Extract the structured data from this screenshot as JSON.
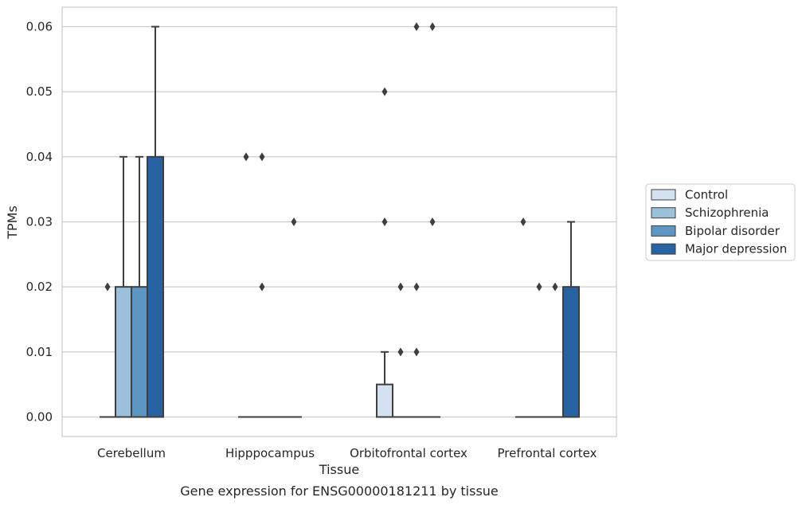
{
  "chart_data": {
    "type": "box",
    "title": "",
    "caption": "Gene expression for ENSG00000181211 by tissue",
    "xlabel": "Tissue",
    "ylabel": "TPMs",
    "ylim": [
      -0.003,
      0.063
    ],
    "yticks": [
      0.0,
      0.01,
      0.02,
      0.03,
      0.04,
      0.05,
      0.06
    ],
    "ytick_labels": [
      "0.00",
      "0.01",
      "0.02",
      "0.03",
      "0.04",
      "0.05",
      "0.06"
    ],
    "grid": "horizontal",
    "legend_position": "right",
    "categories": [
      "Cerebellum",
      "Hipppocampus",
      "Orbitofrontal cortex",
      "Prefrontal cortex"
    ],
    "series": [
      {
        "name": "Control",
        "color": "#d3e1f0",
        "boxes": [
          {
            "q1": 0,
            "median": 0,
            "q3": 0,
            "whisker_low": 0,
            "whisker_high": 0,
            "outliers": [
              0.02
            ]
          },
          {
            "q1": 0,
            "median": 0,
            "q3": 0,
            "whisker_low": 0,
            "whisker_high": 0,
            "outliers": [
              0.04
            ]
          },
          {
            "q1": 0,
            "median": 0,
            "q3": 0.005,
            "whisker_low": 0,
            "whisker_high": 0.01,
            "outliers": [
              0.03,
              0.05
            ]
          },
          {
            "q1": 0,
            "median": 0,
            "q3": 0,
            "whisker_low": 0,
            "whisker_high": 0,
            "outliers": [
              0.03
            ]
          }
        ]
      },
      {
        "name": "Schizophrenia",
        "color": "#9bc0da",
        "boxes": [
          {
            "q1": 0,
            "median": 0,
            "q3": 0.02,
            "whisker_low": 0,
            "whisker_high": 0.04,
            "outliers": []
          },
          {
            "q1": 0,
            "median": 0,
            "q3": 0,
            "whisker_low": 0,
            "whisker_high": 0,
            "outliers": [
              0.02,
              0.04
            ]
          },
          {
            "q1": 0,
            "median": 0,
            "q3": 0,
            "whisker_low": 0,
            "whisker_high": 0,
            "outliers": [
              0.01,
              0.02
            ]
          },
          {
            "q1": 0,
            "median": 0,
            "q3": 0,
            "whisker_low": 0,
            "whisker_high": 0,
            "outliers": [
              0.02
            ]
          }
        ]
      },
      {
        "name": "Bipolar disorder",
        "color": "#5d96c3",
        "boxes": [
          {
            "q1": 0,
            "median": 0,
            "q3": 0.02,
            "whisker_low": 0,
            "whisker_high": 0.04,
            "outliers": []
          },
          {
            "q1": 0,
            "median": 0,
            "q3": 0,
            "whisker_low": 0,
            "whisker_high": 0,
            "outliers": []
          },
          {
            "q1": 0,
            "median": 0,
            "q3": 0,
            "whisker_low": 0,
            "whisker_high": 0,
            "outliers": [
              0.01,
              0.02,
              0.06
            ]
          },
          {
            "q1": 0,
            "median": 0,
            "q3": 0,
            "whisker_low": 0,
            "whisker_high": 0,
            "outliers": [
              0.02
            ]
          }
        ]
      },
      {
        "name": "Major depression",
        "color": "#2763a3",
        "boxes": [
          {
            "q1": 0,
            "median": 0,
            "q3": 0.04,
            "whisker_low": 0,
            "whisker_high": 0.06,
            "outliers": []
          },
          {
            "q1": 0,
            "median": 0,
            "q3": 0,
            "whisker_low": 0,
            "whisker_high": 0,
            "outliers": [
              0.03
            ]
          },
          {
            "q1": 0,
            "median": 0,
            "q3": 0,
            "whisker_low": 0,
            "whisker_high": 0,
            "outliers": [
              0.03,
              0.06
            ]
          },
          {
            "q1": 0,
            "median": 0,
            "q3": 0.02,
            "whisker_low": 0,
            "whisker_high": 0.03,
            "outliers": []
          }
        ]
      }
    ]
  }
}
